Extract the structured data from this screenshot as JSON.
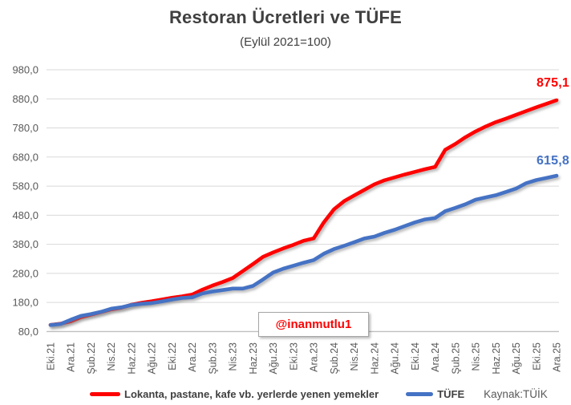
{
  "title": "Restoran Ücretleri ve TÜFE",
  "subtitle": "(Eylül 2021=100)",
  "legend": {
    "series": [
      {
        "label": "Lokanta, pastane, kafe vb. yerlerde yenen yemekler",
        "color": "#FF0000"
      },
      {
        "label": "TÜFE",
        "color": "#4472C4"
      }
    ],
    "source": "Kaynak:TÜİK"
  },
  "annotations": {
    "watermark": "@inanmutlu1",
    "red_end_label": "875,1",
    "blue_end_label": "615,8"
  },
  "colors": {
    "red_series": "#FF0000",
    "blue_series": "#4472C4",
    "gridline": "#D9D9D9",
    "axis_line": "#BFBFBF",
    "tick_label": "#595959",
    "title_text": "#404040",
    "background": "#FFFFFF"
  },
  "chart_data": {
    "type": "line",
    "title": "Restoran Ücretleri ve TÜFE",
    "subtitle": "(Eylül 2021=100)",
    "ylim": [
      80,
      980
    ],
    "y_tick_values": [
      80,
      180,
      280,
      380,
      480,
      580,
      680,
      780,
      880,
      980
    ],
    "y_tick_labels": [
      "80,0",
      "180,0",
      "280,0",
      "380,0",
      "480,0",
      "580,0",
      "680,0",
      "780,0",
      "880,0",
      "980,0"
    ],
    "x": [
      "Eki.21",
      "Kas.21",
      "Ara.21",
      "Oca.22",
      "Şub.22",
      "Mar.22",
      "Nis.22",
      "May.22",
      "Haz.22",
      "Tem.22",
      "Ağu.22",
      "Eyl.22",
      "Eki.22",
      "Kas.22",
      "Ara.22",
      "Oca.23",
      "Şub.23",
      "Mar.23",
      "Nis.23",
      "May.23",
      "Haz.23",
      "Tem.23",
      "Ağu.23",
      "Eyl.23",
      "Eki.23",
      "Kas.23",
      "Ara.23",
      "Oca.24",
      "Şub.24",
      "Mar.24",
      "Nis.24",
      "May.24",
      "Haz.24",
      "Tem.24",
      "Ağu.24",
      "Eyl.24",
      "Eki.24",
      "Kas.24",
      "Ara.24",
      "Oca.25",
      "Şub.25",
      "Mar.25",
      "Nis.25",
      "May.25",
      "Haz.25",
      "Tem.25",
      "Ağu.25",
      "Eyl.25",
      "Eki.25",
      "Kas.25",
      "Ara.25"
    ],
    "x_tick_labels": [
      "Eki.21",
      "Ara.21",
      "Şub.22",
      "Nis.22",
      "Haz.22",
      "Ağu.22",
      "Eki.22",
      "Ara.22",
      "Şub.23",
      "Nis.23",
      "Haz.23",
      "Ağu.23",
      "Eki.23",
      "Ara.23",
      "Şub.24",
      "Nis.24",
      "Haz.24",
      "Ağu.24",
      "Eki.24",
      "Ara.24",
      "Şub.25",
      "Nis.25",
      "Haz.25",
      "Ağu.25",
      "Eki.25",
      "Ara.25"
    ],
    "grid": "horizontal",
    "legend_position": "bottom",
    "series": [
      {
        "name": "Lokanta, pastane, kafe vb. yerlerde yenen yemekler",
        "color": "#FF0000",
        "end_label": "875,1",
        "values": [
          103,
          107,
          115,
          129,
          138,
          147,
          156,
          162,
          172,
          179,
          184,
          190,
          196,
          201,
          207,
          224,
          238,
          250,
          264,
          288,
          312,
          337,
          352,
          366,
          378,
          392,
          400,
          455,
          500,
          528,
          548,
          567,
          586,
          600,
          610,
          620,
          629,
          638,
          646,
          705,
          725,
          748,
          768,
          785,
          800,
          812,
          825,
          838,
          851,
          863,
          875.1
        ]
      },
      {
        "name": "TÜFE",
        "color": "#4472C4",
        "end_label": "615,8",
        "values": [
          102.4,
          106.0,
          120.4,
          133.7,
          140.2,
          147.8,
          158.5,
          163.3,
          171.3,
          175.4,
          178.0,
          183.4,
          189.9,
          195.4,
          197.7,
          210.9,
          217.5,
          222.5,
          227.8,
          227.9,
          236.8,
          259.3,
          282.9,
          296.3,
          306.5,
          316.5,
          325.8,
          347.6,
          363.4,
          374.8,
          386.8,
          399.8,
          406.4,
          419.5,
          429.8,
          442.6,
          455.4,
          465.6,
          470.4,
          494.0,
          505.2,
          517.7,
          533.2,
          541.3,
          548.8,
          560.1,
          571.5,
          590.0,
          600.9,
          608.0,
          615.8
        ]
      }
    ]
  }
}
